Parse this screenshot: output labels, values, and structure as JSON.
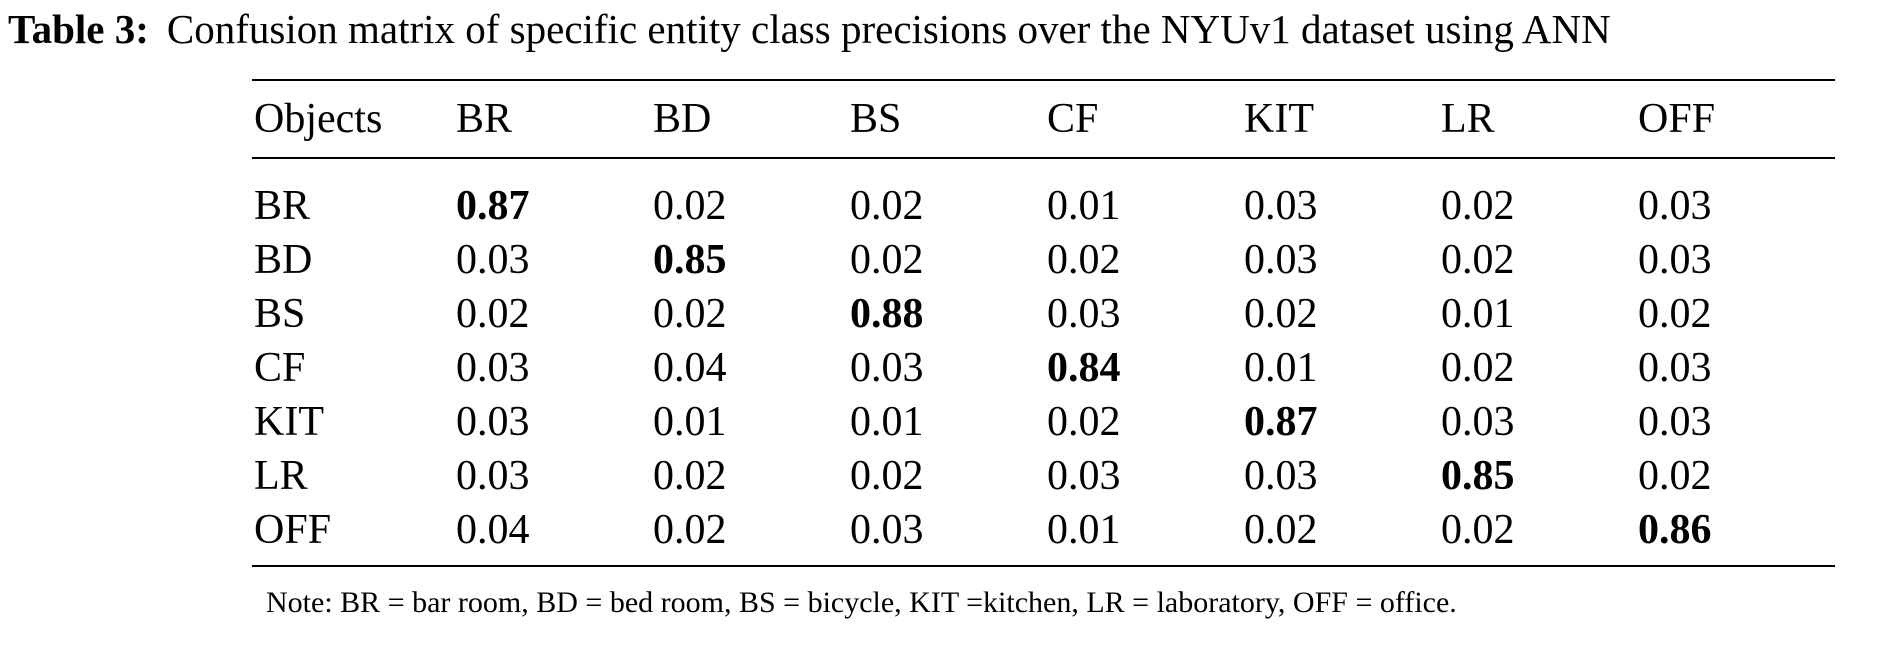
{
  "caption": {
    "label": "Table 3:",
    "text": "Confusion matrix of specific entity class precisions over the NYUv1 dataset using ANN"
  },
  "table": {
    "header": [
      "Objects",
      "BR",
      "BD",
      "BS",
      "CF",
      "KIT",
      "LR",
      "OFF"
    ],
    "rows": [
      {
        "label": "BR",
        "cells": [
          "0.87",
          "0.02",
          "0.02",
          "0.01",
          "0.03",
          "0.02",
          "0.03"
        ]
      },
      {
        "label": "BD",
        "cells": [
          "0.03",
          "0.85",
          "0.02",
          "0.02",
          "0.03",
          "0.02",
          "0.03"
        ]
      },
      {
        "label": "BS",
        "cells": [
          "0.02",
          "0.02",
          "0.88",
          "0.03",
          "0.02",
          "0.01",
          "0.02"
        ]
      },
      {
        "label": "CF",
        "cells": [
          "0.03",
          "0.04",
          "0.03",
          "0.84",
          "0.01",
          "0.02",
          "0.03"
        ]
      },
      {
        "label": "KIT",
        "cells": [
          "0.03",
          "0.01",
          "0.01",
          "0.02",
          "0.87",
          "0.03",
          "0.03"
        ]
      },
      {
        "label": "LR",
        "cells": [
          "0.03",
          "0.02",
          "0.02",
          "0.03",
          "0.03",
          "0.85",
          "0.02"
        ]
      },
      {
        "label": "OFF",
        "cells": [
          "0.04",
          "0.02",
          "0.03",
          "0.01",
          "0.02",
          "0.02",
          "0.86"
        ]
      }
    ]
  },
  "note": "Note: BR = bar room, BD = bed room, BS = bicycle, KIT =kitchen, LR = laboratory, OFF = office."
}
